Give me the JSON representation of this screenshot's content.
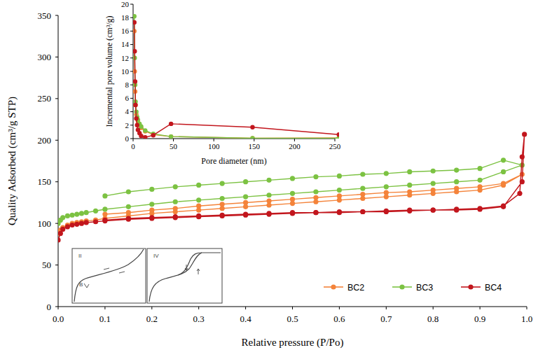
{
  "chart_data": [
    {
      "type": "line",
      "x_label": "Relative pressure (P/Po)",
      "y_label": "Quality Adsorbed (cm³/g STP)",
      "annotations": [
        "II",
        "B",
        "IV"
      ],
      "xlim": [
        0,
        1
      ],
      "ylim": [
        0,
        350
      ],
      "xticks": [
        {
          "value": 0,
          "label": "0.0"
        },
        0.1,
        0.2,
        0.3,
        0.4,
        0.5,
        0.6,
        0.7,
        0.8,
        0.9,
        {
          "value": 1,
          "label": "1.0"
        }
      ],
      "yticks": [
        0,
        50,
        100,
        150,
        200,
        250,
        300,
        350
      ],
      "grid": false,
      "legend": "lower right",
      "marker": "circle",
      "line_style": "solid",
      "series": [
        {
          "name": "BC2",
          "color": "#f4833a",
          "x": [
            0.0,
            0.005,
            0.01,
            0.02,
            0.03,
            0.04,
            0.05,
            0.06,
            0.08,
            0.1,
            0.15,
            0.2,
            0.25,
            0.3,
            0.35,
            0.4,
            0.45,
            0.5,
            0.55,
            0.6,
            0.65,
            0.7,
            0.75,
            0.8,
            0.85,
            0.9,
            0.95,
            0.99,
            0.95,
            0.9,
            0.85,
            0.8,
            0.75,
            0.7,
            0.65,
            0.6,
            0.55,
            0.5,
            0.45,
            0.4,
            0.35,
            0.3,
            0.25,
            0.2,
            0.15,
            0.1
          ],
          "values": [
            88,
            92,
            95,
            98,
            100,
            101,
            102,
            103,
            104,
            106,
            109,
            112,
            114,
            116,
            118,
            120,
            122,
            124,
            126,
            128,
            130,
            132,
            134,
            136,
            138,
            140,
            146,
            159,
            148,
            144,
            142,
            140,
            138,
            137,
            135,
            133,
            131,
            129,
            127,
            125,
            123,
            121,
            118,
            116,
            113,
            111
          ]
        },
        {
          "name": "BC3",
          "color": "#7cc242",
          "x": [
            0.0,
            0.005,
            0.01,
            0.02,
            0.03,
            0.04,
            0.05,
            0.06,
            0.08,
            0.1,
            0.15,
            0.2,
            0.25,
            0.3,
            0.35,
            0.4,
            0.45,
            0.5,
            0.55,
            0.6,
            0.65,
            0.7,
            0.75,
            0.8,
            0.85,
            0.9,
            0.95,
            0.99,
            0.95,
            0.9,
            0.85,
            0.8,
            0.75,
            0.7,
            0.65,
            0.6,
            0.55,
            0.5,
            0.45,
            0.4,
            0.35,
            0.3,
            0.25,
            0.2,
            0.15,
            0.1
          ],
          "values": [
            100,
            104,
            107,
            109,
            110,
            111,
            112,
            113,
            115,
            117,
            120,
            123,
            126,
            128,
            130,
            132,
            134,
            136,
            138,
            140,
            142,
            144,
            146,
            148,
            150,
            152,
            162,
            170,
            176,
            166,
            164,
            163,
            162,
            160,
            159,
            157,
            156,
            154,
            152,
            150,
            148,
            146,
            144,
            141,
            138,
            133
          ]
        },
        {
          "name": "BC4",
          "color": "#c2161d",
          "x": [
            0.0,
            0.005,
            0.01,
            0.02,
            0.03,
            0.04,
            0.05,
            0.06,
            0.08,
            0.1,
            0.15,
            0.2,
            0.25,
            0.3,
            0.35,
            0.4,
            0.45,
            0.5,
            0.55,
            0.6,
            0.65,
            0.7,
            0.75,
            0.8,
            0.85,
            0.9,
            0.95,
            0.99,
            0.995,
            0.99,
            0.985,
            0.95,
            0.9,
            0.85,
            0.8,
            0.75,
            0.7,
            0.65,
            0.6,
            0.55,
            0.5,
            0.45,
            0.4,
            0.35,
            0.3,
            0.25,
            0.2,
            0.15,
            0.1
          ],
          "values": [
            80,
            88,
            93,
            96,
            98,
            99,
            100,
            101,
            102,
            103,
            105,
            106,
            107,
            108,
            109,
            110,
            111,
            112,
            113,
            113,
            114,
            114,
            115,
            116,
            116,
            117,
            120,
            150,
            207,
            180,
            136,
            121,
            118,
            117,
            116,
            116,
            115,
            114,
            114,
            113,
            113,
            112,
            111,
            110,
            109,
            108,
            107,
            106,
            104
          ]
        }
      ]
    },
    {
      "type": "line",
      "x_label": "Pore diameter (nm)",
      "y_label": "Incremental pore volume (cm³/g)",
      "xlim": [
        0,
        250
      ],
      "ylim": [
        0,
        20
      ],
      "xticks": [
        0,
        50,
        100,
        150,
        200,
        250
      ],
      "yticks": [
        0,
        2,
        4,
        6,
        8,
        10,
        12,
        14,
        16,
        18,
        20
      ],
      "grid": false,
      "marker": "circle",
      "line_style": "solid",
      "series": [
        {
          "color": "#f4833a",
          "x": [
            1.5,
            2,
            2.5,
            3,
            4,
            5,
            6,
            8,
            10,
            15,
            25,
            47,
            148,
            255
          ],
          "values": [
            16,
            10,
            7,
            5,
            3.6,
            3,
            2.6,
            2,
            1.6,
            1.1,
            0.6,
            0.3,
            0.05,
            0.1
          ]
        },
        {
          "color": "#7cc242",
          "x": [
            1.5,
            2,
            2.5,
            3,
            4,
            5,
            6,
            8,
            10,
            15,
            25,
            47,
            148,
            255
          ],
          "values": [
            18.2,
            12,
            8,
            5.5,
            4,
            3.2,
            2.8,
            2.2,
            1.8,
            1.2,
            0.7,
            0.3,
            0.05,
            0.05
          ]
        },
        {
          "color": "#c2161d",
          "x": [
            1.5,
            2,
            2.5,
            3,
            4,
            5,
            6,
            8,
            10,
            15,
            25,
            47,
            148,
            255
          ],
          "values": [
            17.3,
            13,
            8.5,
            5,
            3,
            2,
            1.3,
            0.8,
            0.4,
            0.2,
            0.5,
            2.2,
            1.7,
            0.6
          ]
        }
      ]
    }
  ]
}
